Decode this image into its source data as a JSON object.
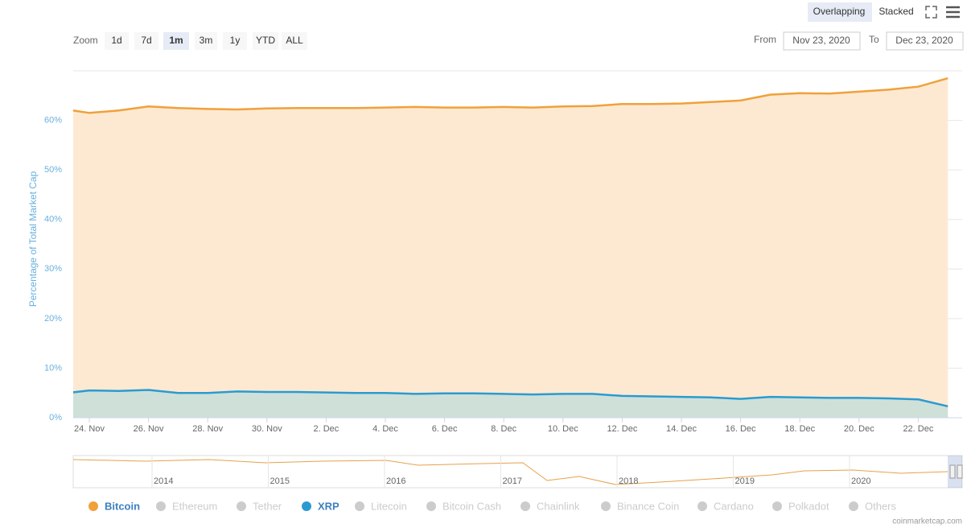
{
  "toolbar": {
    "modes": [
      "Overlapping",
      "Stacked"
    ],
    "zoom_label": "Zoom",
    "zoom_buttons": [
      "1d",
      "7d",
      "1m",
      "3m",
      "1y",
      "YTD",
      "ALL"
    ],
    "active_zoom": "1m",
    "from_label": "From",
    "from": "Nov 23, 2020",
    "to_label": "To",
    "to": "Dec 23, 2020"
  },
  "credit": "coinmarketcap.com",
  "navigator": {
    "labels": [
      "2014",
      "2015",
      "2016",
      "2017",
      "2018",
      "2019",
      "2020"
    ]
  },
  "chart_data": {
    "type": "area",
    "y_label": "Percentage of Total Market Cap",
    "x": [
      null,
      "24. Nov",
      null,
      "26. Nov",
      null,
      "28. Nov",
      null,
      "30. Nov",
      null,
      "2. Dec",
      null,
      "4. Dec",
      null,
      "6. Dec",
      null,
      "8. Dec",
      null,
      "10. Dec",
      null,
      "12. Dec",
      null,
      "14. Dec",
      null,
      "16. Dec",
      null,
      "18. Dec",
      null,
      "20. Dec",
      null,
      "22. Dec",
      null
    ],
    "series": [
      {
        "name": "Bitcoin",
        "color": "#f0a13a",
        "fill": "#fde9d2",
        "values": [
          62.4,
          61.5,
          62.0,
          62.8,
          62.5,
          62.3,
          62.2,
          62.4,
          62.5,
          62.5,
          62.5,
          62.6,
          62.7,
          62.6,
          62.6,
          62.7,
          62.6,
          62.8,
          62.9,
          63.3,
          63.3,
          63.4,
          63.7,
          64.0,
          65.2,
          65.5,
          65.4,
          65.8,
          66.2,
          66.8,
          68.5
        ]
      },
      {
        "name": "Ethereum",
        "visible": false
      },
      {
        "name": "Tether",
        "visible": false
      },
      {
        "name": "XRP",
        "color": "#2a9bd0",
        "fill": "#cfe0d9",
        "values": [
          4.8,
          5.5,
          5.4,
          5.6,
          5.0,
          5.0,
          5.3,
          5.2,
          5.2,
          5.1,
          5.0,
          5.0,
          4.8,
          4.9,
          4.9,
          4.8,
          4.7,
          4.8,
          4.8,
          4.4,
          4.3,
          4.2,
          4.1,
          3.8,
          4.2,
          4.1,
          4.0,
          4.0,
          3.9,
          3.7,
          2.3
        ]
      },
      {
        "name": "Litecoin",
        "visible": false
      },
      {
        "name": "Bitcoin Cash",
        "visible": false
      },
      {
        "name": "Chainlink",
        "visible": false
      },
      {
        "name": "Binance Coin",
        "visible": false
      },
      {
        "name": "Cardano",
        "visible": false
      },
      {
        "name": "Polkadot",
        "visible": false
      },
      {
        "name": "Others",
        "visible": false
      }
    ],
    "ylim": [
      0,
      70
    ],
    "yticks": [
      {
        "value": 0,
        "label": "0%"
      },
      {
        "value": 10,
        "label": "10%"
      },
      {
        "value": 20,
        "label": "20%"
      },
      {
        "value": 30,
        "label": "30%"
      },
      {
        "value": 40,
        "label": "40%"
      },
      {
        "value": 50,
        "label": "50%"
      },
      {
        "value": 60,
        "label": "60%"
      }
    ],
    "grid": true
  }
}
